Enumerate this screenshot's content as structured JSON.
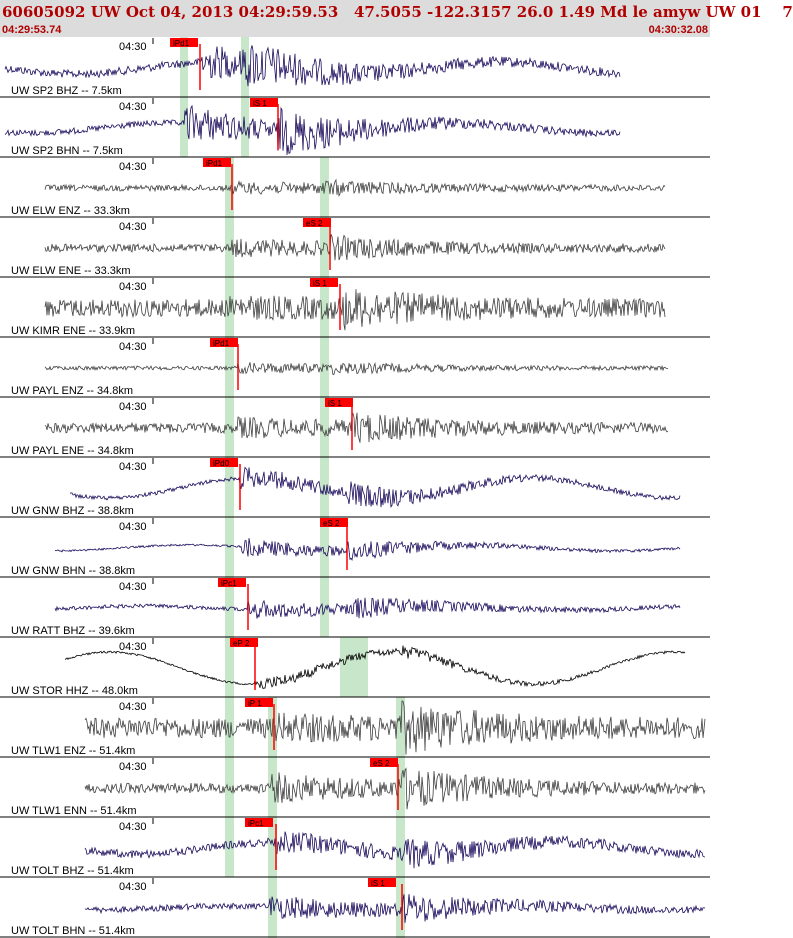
{
  "header": {
    "title": "60605092 UW Oct 04, 2013 04:29:59.53   47.5055 -122.3157 26.0 1.49 Md le amyw UW 01    7",
    "start_time": "04:29:53.74",
    "end_time": "04:30:32.08"
  },
  "colors": {
    "header_bg": "#dcdcdc",
    "header_text": "#b00000",
    "waveform_velocity": "#1a0a5c",
    "waveform_accel": "#404040",
    "waveform_black": "#000000",
    "pick_flag": "#ff0000",
    "pick_window": "#c8e6c9"
  },
  "traces": [
    {
      "label": "UW SP2 BHZ -- 7.5km",
      "time_label": "04:30",
      "pick": "iPd1",
      "pick_second": "",
      "color": "velocity"
    },
    {
      "label": "UW SP2 BHN -- 7.5km",
      "time_label": "04:30",
      "pick": "iS 1",
      "pick_second": "",
      "color": "velocity"
    },
    {
      "label": "UW ELW ENZ -- 33.3km",
      "time_label": "04:30",
      "pick": "iPd1",
      "pick_second": "",
      "color": "accel"
    },
    {
      "label": "UW ELW ENE -- 33.3km",
      "time_label": "04:30",
      "pick": "eS 2",
      "pick_second": "",
      "color": "accel"
    },
    {
      "label": "UW KIMR ENE -- 33.9km",
      "time_label": "04:30",
      "pick": "iS 1",
      "pick_second": "",
      "color": "accel"
    },
    {
      "label": "UW PAYL ENZ -- 34.8km",
      "time_label": "04:30",
      "pick": "iPd1",
      "pick_second": "",
      "color": "accel"
    },
    {
      "label": "UW PAYL ENE -- 34.8km",
      "time_label": "04:30",
      "pick": "iS 1",
      "pick_second": "",
      "color": "accel"
    },
    {
      "label": "UW GNW BHZ -- 38.8km",
      "time_label": "04:30",
      "pick": "iPd0",
      "pick_second": "",
      "color": "velocity"
    },
    {
      "label": "UW GNW BHN -- 38.8km",
      "time_label": "04:30",
      "pick": "eS 2",
      "pick_second": "",
      "color": "velocity"
    },
    {
      "label": "UW RATT BHZ -- 39.6km",
      "time_label": "04:30",
      "pick": "iPc1",
      "pick_second": "",
      "color": "velocity"
    },
    {
      "label": "UW STOR HHZ -- 48.0km",
      "time_label": "04:30",
      "pick": "eP 2",
      "pick_second": "",
      "color": "black"
    },
    {
      "label": "UW TLW1 ENZ -- 51.4km",
      "time_label": "04:30",
      "pick": "iP 1",
      "pick_second": "",
      "color": "accel"
    },
    {
      "label": "UW TLW1 ENN -- 51.4km",
      "time_label": "04:30",
      "pick": "eS 2",
      "pick_second": "",
      "color": "accel"
    },
    {
      "label": "UW TOLT BHZ -- 51.4km",
      "time_label": "04:30",
      "pick": "iPc1",
      "pick_second": "",
      "color": "velocity"
    },
    {
      "label": "UW TOLT BHN -- 51.4km",
      "time_label": "04:30",
      "pick": "iS 1",
      "pick_second": "",
      "color": "velocity"
    }
  ]
}
